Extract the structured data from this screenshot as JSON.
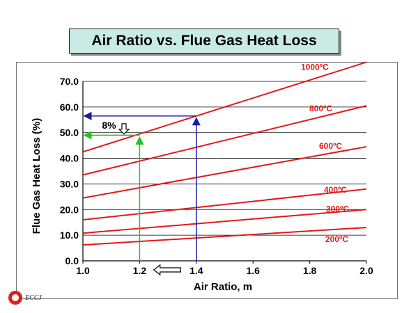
{
  "title": "Air Ratio vs. Flue Gas Heat Loss",
  "logo_text": "ECCJ",
  "chart_data": {
    "type": "line",
    "xlabel": "Air Ratio, m",
    "ylabel": "Flue Gas Heat Loss (%)",
    "xlim": [
      1.0,
      2.0
    ],
    "ylim": [
      0.0,
      70.0
    ],
    "x_ticks": [
      "1.0",
      "1.2",
      "1.4",
      "1.6",
      "1.8",
      "2.0"
    ],
    "y_ticks": [
      "0.0",
      "10.0",
      "20.0",
      "30.0",
      "40.0",
      "50.0",
      "60.0",
      "70.0"
    ],
    "grid": "horizontal",
    "line_color": "#e01a1a",
    "series": [
      {
        "name": "1000ºC",
        "x": [
          1.0,
          2.0
        ],
        "y": [
          42.5,
          77.5
        ]
      },
      {
        "name": "800ºC",
        "x": [
          1.0,
          2.0
        ],
        "y": [
          33.5,
          60.5
        ]
      },
      {
        "name": "600ºC",
        "x": [
          1.0,
          2.0
        ],
        "y": [
          24.5,
          44.5
        ]
      },
      {
        "name": "400ºC",
        "x": [
          1.0,
          2.0
        ],
        "y": [
          16.0,
          28.0
        ]
      },
      {
        "name": "300ºC",
        "x": [
          1.0,
          2.0
        ],
        "y": [
          10.8,
          20.0
        ]
      },
      {
        "name": "200ºC",
        "x": [
          1.0,
          2.0
        ],
        "y": [
          6.2,
          13.0
        ]
      }
    ],
    "annotations": {
      "label": "8%",
      "blue_point": {
        "x": 1.4,
        "y": 56.5
      },
      "green_point": {
        "x": 1.2,
        "y": 49.0
      },
      "blue_color": "#1a1aa8",
      "green_color": "#22c222"
    }
  }
}
